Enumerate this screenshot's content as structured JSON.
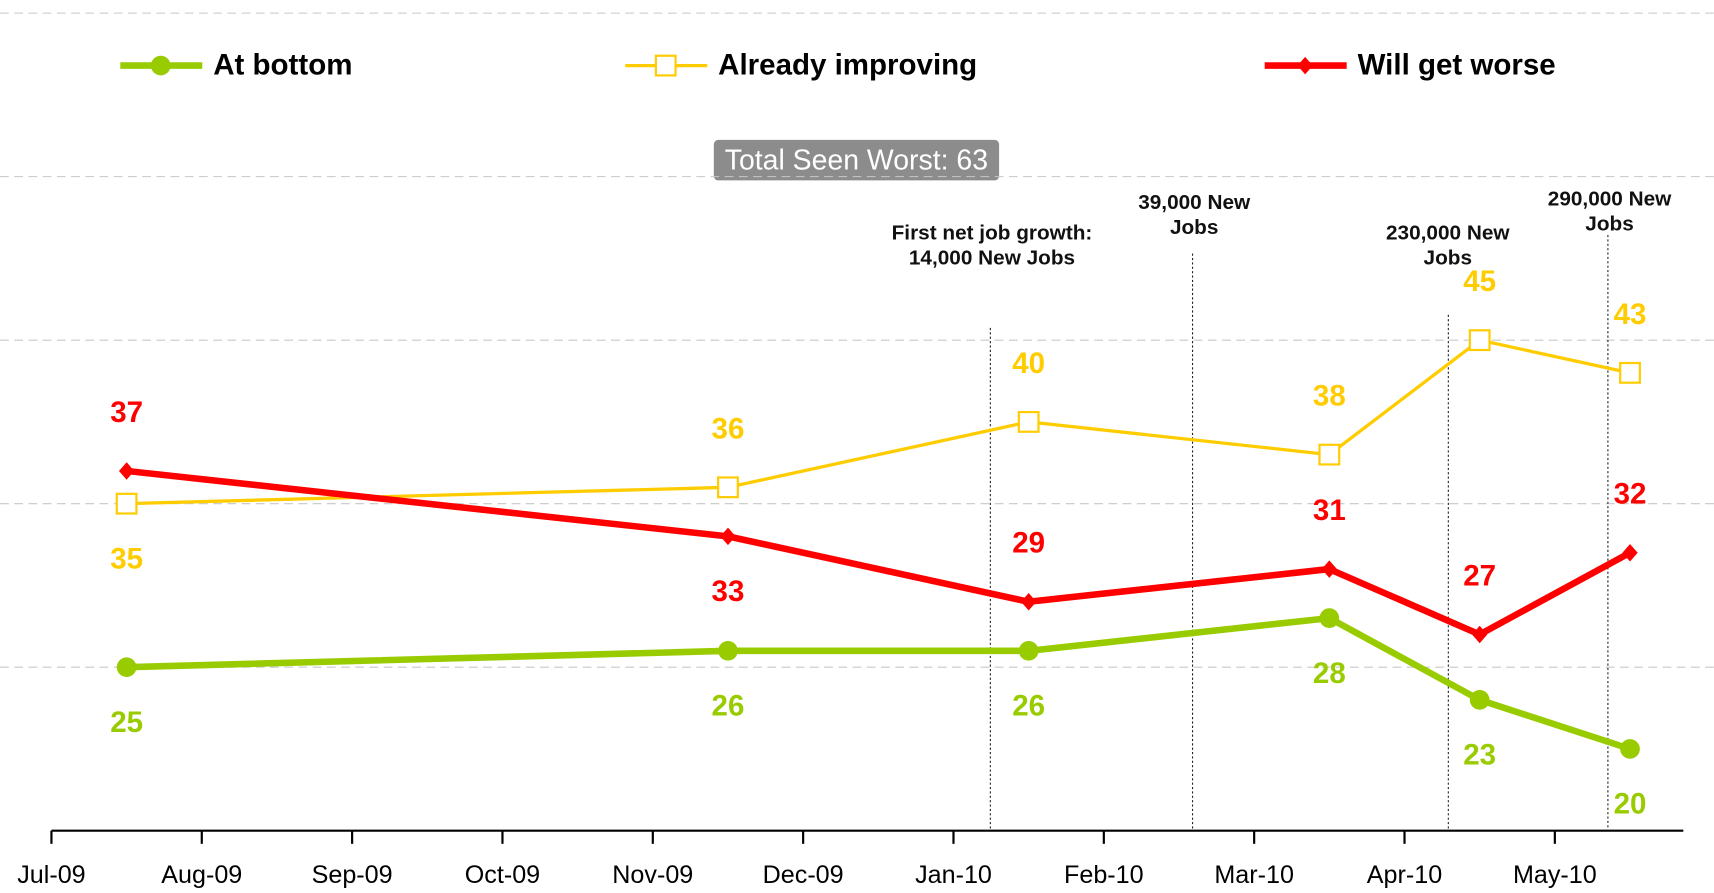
{
  "chart_data": {
    "type": "line",
    "x": [
      "2009-07",
      "2009-11",
      "2010-01",
      "2010-03",
      "2010-04",
      "2010-05"
    ],
    "series": [
      {
        "name": "At bottom",
        "color": "#99cc00",
        "marker": "circle",
        "values": [
          25,
          26,
          26,
          28,
          23,
          20
        ]
      },
      {
        "name": "Already improving",
        "color": "#ffcc00",
        "marker": "square",
        "values": [
          35,
          36,
          40,
          38,
          45,
          43
        ]
      },
      {
        "name": "Will get worse",
        "color": "#ff0000",
        "marker": "diamond",
        "values": [
          37,
          33,
          29,
          31,
          27,
          32
        ]
      }
    ],
    "xlim": [
      "2009-07",
      "2010-05"
    ],
    "xticks": [
      {
        "value": "2009-07",
        "label": "Jul-09"
      },
      {
        "value": "2009-08",
        "label": "Aug-09"
      },
      {
        "value": "2009-09",
        "label": "Sep-09"
      },
      {
        "value": "2009-10",
        "label": "Oct-09"
      },
      {
        "value": "2009-11",
        "label": "Nov-09"
      },
      {
        "value": "2009-12",
        "label": "Dec-09"
      },
      {
        "value": "2010-01",
        "label": "Jan-10"
      },
      {
        "value": "2010-02",
        "label": "Feb-10"
      },
      {
        "value": "2010-03",
        "label": "Mar-10"
      },
      {
        "value": "2010-04",
        "label": "Apr-10"
      },
      {
        "value": "2010-05",
        "label": "May-10"
      }
    ],
    "ylim": [
      15,
      65
    ],
    "yticks": [
      25,
      35,
      45,
      55,
      65
    ],
    "grid": true,
    "legend": "top",
    "annotations": [
      "Total Seen Worst: 63",
      "First net job growth: 14,000 New Jobs",
      "39,000 New Jobs",
      "230,000 New Jobs",
      "290,000 New Jobs"
    ]
  }
}
